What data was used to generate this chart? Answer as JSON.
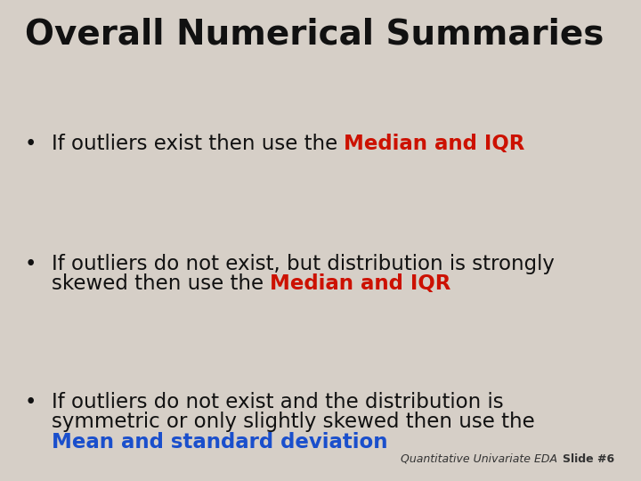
{
  "title": "Overall Numerical Summaries",
  "background_color": "#d6cfc7",
  "title_color": "#111111",
  "title_fontsize": 28,
  "title_fontweight": "bold",
  "bullet_color": "#111111",
  "bullet_fontsize": 16.5,
  "footer_left": "Quantitative Univariate EDA",
  "footer_right": "Slide #6",
  "footer_fontsize": 9,
  "footer_color": "#333333",
  "bullets": [
    {
      "lines": [
        [
          {
            "text": "If outliers exist then use the ",
            "color": "#111111",
            "bold": false
          },
          {
            "text": "Median and IQR",
            "color": "#cc1100",
            "bold": true
          }
        ]
      ]
    },
    {
      "lines": [
        [
          {
            "text": "If outliers do not exist, but distribution is strongly",
            "color": "#111111",
            "bold": false
          }
        ],
        [
          {
            "text": "skewed then use the ",
            "color": "#111111",
            "bold": false
          },
          {
            "text": "Median and IQR",
            "color": "#cc1100",
            "bold": true
          }
        ]
      ]
    },
    {
      "lines": [
        [
          {
            "text": "If outliers do not exist and the distribution is",
            "color": "#111111",
            "bold": false
          }
        ],
        [
          {
            "text": "symmetric or only slightly skewed then use the",
            "color": "#111111",
            "bold": false
          }
        ],
        [
          {
            "text": "Mean and standard deviation",
            "color": "#1a4fcc",
            "bold": true
          }
        ]
      ]
    }
  ]
}
